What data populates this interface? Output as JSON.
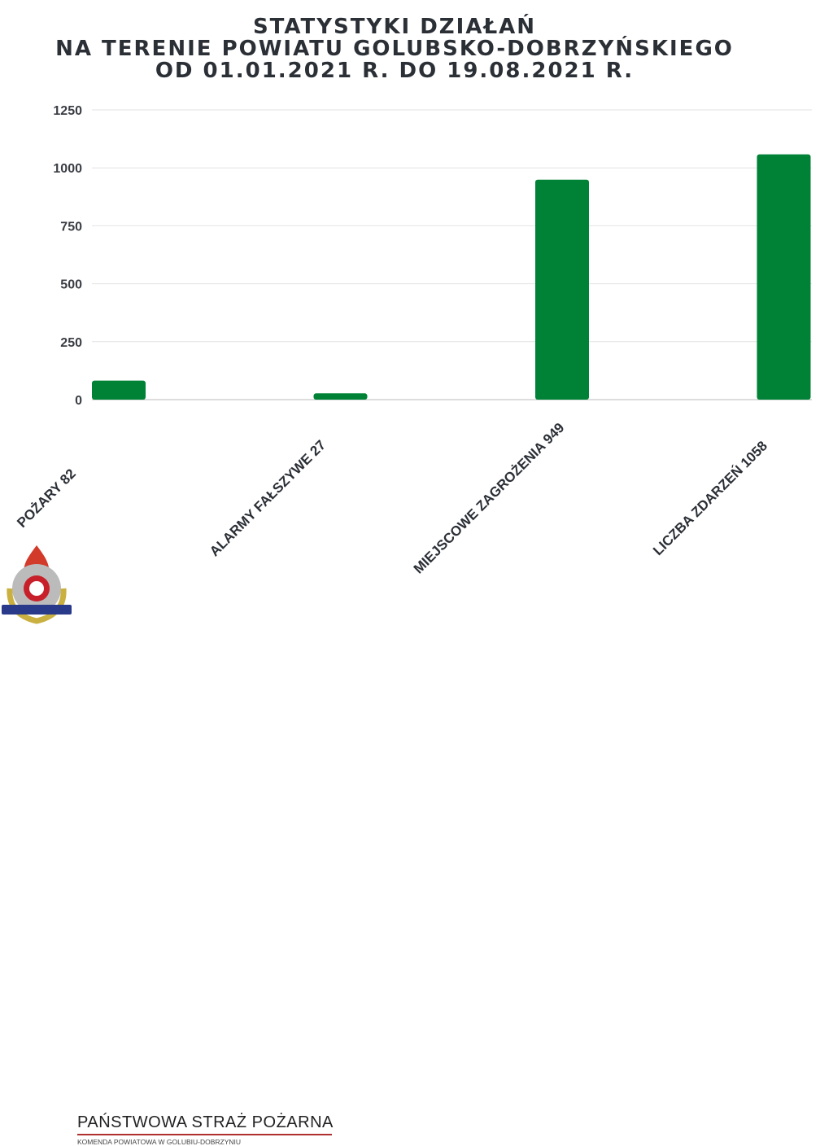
{
  "chart_data": {
    "type": "bar",
    "title": [
      "STATYSTYKI DZIAŁAŃ",
      "NA TERENIE POWIATU GOLUBSKO-DOBRZYŃSKIEGO",
      "OD 01.01.2021 R. DO 19.08.2021 R."
    ],
    "categories": [
      "POŻARY 82",
      "ALARMY FAŁSZYWE 27",
      "MIEJSCOWE ZAGROŻENIA 949",
      "LICZBA ZDARZEŃ 1058"
    ],
    "values": [
      82,
      27,
      949,
      1058
    ],
    "yticks": [
      "0",
      "250",
      "500",
      "750",
      "1000",
      "1250"
    ],
    "ylim": [
      0,
      1250
    ],
    "grid": true,
    "bar_color": "#008236",
    "xlabel": "",
    "ylabel": ""
  },
  "footer": {
    "org": "PAŃSTWOWA STRAŻ POŻARNA",
    "unit": "KOMENDA POWIATOWA W GOLUBIU-DOBRZYNIU",
    "logo_text": "PAŃSTWOWA STRAŻ POŻARNA"
  }
}
